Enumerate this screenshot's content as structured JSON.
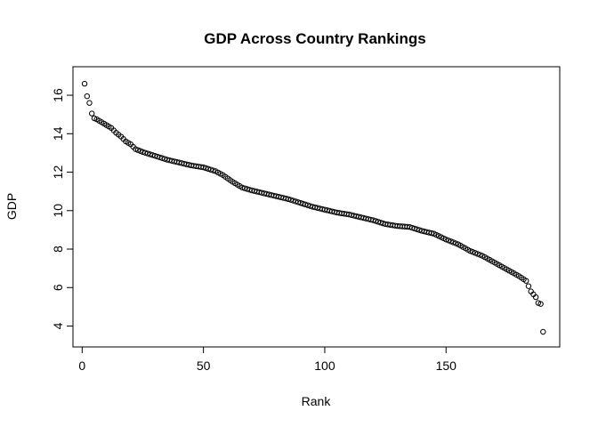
{
  "chart_data": {
    "type": "scatter",
    "title": "GDP Across Country Rankings",
    "xlabel": "Rank",
    "ylabel": "GDP",
    "xlim": [
      1,
      190
    ],
    "ylim": [
      3.7,
      16.6
    ],
    "x_ticks": [
      0,
      50,
      100,
      150
    ],
    "y_ticks": [
      4,
      6,
      8,
      10,
      12,
      14,
      16
    ],
    "grid": false,
    "legend": "none",
    "point_shape": "open-circle",
    "anchors": [
      [
        1,
        16.6
      ],
      [
        2,
        15.95
      ],
      [
        3,
        15.6
      ],
      [
        4,
        15.05
      ],
      [
        5,
        14.8
      ],
      [
        6,
        14.75
      ],
      [
        8,
        14.6
      ],
      [
        10,
        14.45
      ],
      [
        12,
        14.3
      ],
      [
        14,
        14.05
      ],
      [
        16,
        13.85
      ],
      [
        18,
        13.6
      ],
      [
        20,
        13.45
      ],
      [
        22,
        13.2
      ],
      [
        25,
        13.05
      ],
      [
        30,
        12.85
      ],
      [
        35,
        12.65
      ],
      [
        40,
        12.5
      ],
      [
        45,
        12.35
      ],
      [
        50,
        12.25
      ],
      [
        55,
        12.05
      ],
      [
        58,
        11.85
      ],
      [
        62,
        11.5
      ],
      [
        66,
        11.2
      ],
      [
        70,
        11.05
      ],
      [
        75,
        10.9
      ],
      [
        80,
        10.75
      ],
      [
        85,
        10.6
      ],
      [
        90,
        10.4
      ],
      [
        95,
        10.2
      ],
      [
        100,
        10.05
      ],
      [
        105,
        9.9
      ],
      [
        110,
        9.8
      ],
      [
        115,
        9.65
      ],
      [
        120,
        9.5
      ],
      [
        125,
        9.3
      ],
      [
        130,
        9.2
      ],
      [
        135,
        9.15
      ],
      [
        140,
        8.95
      ],
      [
        145,
        8.8
      ],
      [
        150,
        8.5
      ],
      [
        155,
        8.25
      ],
      [
        160,
        7.9
      ],
      [
        165,
        7.65
      ],
      [
        170,
        7.3
      ],
      [
        175,
        6.95
      ],
      [
        180,
        6.6
      ],
      [
        183,
        6.35
      ],
      [
        185,
        5.8
      ],
      [
        187,
        5.5
      ],
      [
        188,
        5.2
      ],
      [
        189,
        5.15
      ],
      [
        190,
        3.7
      ]
    ]
  }
}
